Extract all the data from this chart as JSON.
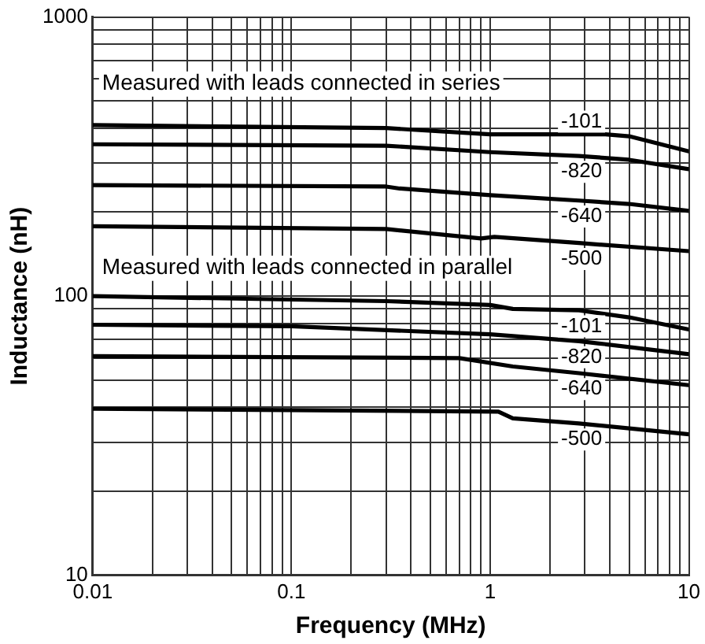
{
  "chart_data": {
    "type": "line",
    "xlabel": "Frequency (MHz)",
    "ylabel": "Inductance (nH)",
    "log": "xy",
    "grid": true,
    "legend": false,
    "marker": "none",
    "line_style": "solid",
    "annotations": [
      "Measured with leads connected in series",
      "Measured with leads connected in parallel"
    ],
    "xlim": [
      0.01,
      10
    ],
    "ylim": [
      10,
      1000
    ],
    "xticks": [
      0.01,
      {
        "value": 0.02,
        "label": null
      },
      {
        "value": 0.03,
        "label": null
      },
      {
        "value": 0.04,
        "label": null
      },
      {
        "value": 0.05,
        "label": null
      },
      {
        "value": 0.06,
        "label": null
      },
      {
        "value": 0.07,
        "label": null
      },
      {
        "value": 0.08,
        "label": null
      },
      {
        "value": 0.09,
        "label": null
      },
      0.1,
      {
        "value": 0.2,
        "label": null
      },
      {
        "value": 0.3,
        "label": null
      },
      {
        "value": 0.4,
        "label": null
      },
      {
        "value": 0.5,
        "label": null
      },
      {
        "value": 0.6,
        "label": null
      },
      {
        "value": 0.7,
        "label": null
      },
      {
        "value": 0.8,
        "label": null
      },
      {
        "value": 0.9,
        "label": null
      },
      1,
      {
        "value": 2,
        "label": null
      },
      {
        "value": 3,
        "label": null
      },
      {
        "value": 4,
        "label": null
      },
      {
        "value": 5,
        "label": null
      },
      {
        "value": 6,
        "label": null
      },
      {
        "value": 7,
        "label": null
      },
      {
        "value": 8,
        "label": null
      },
      {
        "value": 9,
        "label": null
      },
      10
    ],
    "yticks": [
      10,
      {
        "value": 20,
        "label": null
      },
      {
        "value": 30,
        "label": null
      },
      {
        "value": 40,
        "label": null
      },
      {
        "value": 50,
        "label": null
      },
      {
        "value": 60,
        "label": null
      },
      {
        "value": 70,
        "label": null
      },
      {
        "value": 80,
        "label": null
      },
      {
        "value": 90,
        "label": null
      },
      100,
      {
        "value": 200,
        "label": null
      },
      {
        "value": 300,
        "label": null
      },
      {
        "value": 400,
        "label": null
      },
      {
        "value": 500,
        "label": null
      },
      {
        "value": 600,
        "label": null
      },
      {
        "value": 700,
        "label": null
      },
      {
        "value": 800,
        "label": null
      },
      {
        "value": 900,
        "label": null
      },
      1000
    ],
    "series": [
      {
        "name": "-101",
        "color": "#000000",
        "x": [
          0.01,
          0.3,
          1,
          3.8,
          5,
          10
        ],
        "values": [
          410,
          400,
          380,
          380,
          374,
          330
        ]
      },
      {
        "name": "-820",
        "color": "#000000",
        "x": [
          0.01,
          0.3,
          1,
          2.8,
          5,
          10
        ],
        "values": [
          350,
          346,
          328,
          318,
          308,
          285
        ]
      },
      {
        "name": "-640",
        "color": "#000000",
        "x": [
          0.01,
          0.3,
          0.35,
          1,
          2.8,
          5,
          10
        ],
        "values": [
          250,
          247,
          243,
          230,
          220,
          214,
          202
        ]
      },
      {
        "name": "-500",
        "color": "#000000",
        "x": [
          0.01,
          0.3,
          0.9,
          1.05,
          2.8,
          10
        ],
        "values": [
          178,
          174,
          161,
          163,
          155,
          145
        ]
      },
      {
        "name": "-101",
        "color": "#000000",
        "x": [
          0.01,
          0.3,
          1,
          1.3,
          2.8,
          5,
          10
        ],
        "values": [
          100,
          96,
          93,
          90,
          89,
          84,
          76
        ]
      },
      {
        "name": "-820",
        "color": "#000000",
        "x": [
          0.01,
          0.1,
          1,
          2.8,
          10
        ],
        "values": [
          79,
          78,
          73,
          69,
          62
        ]
      },
      {
        "name": "-640",
        "color": "#000000",
        "x": [
          0.01,
          0.7,
          1.3,
          2.8,
          10
        ],
        "values": [
          61,
          60,
          56,
          53,
          48
        ]
      },
      {
        "name": "-500",
        "color": "#000000",
        "x": [
          0.01,
          1.1,
          1.3,
          2.8,
          10
        ],
        "values": [
          39.5,
          38.6,
          36.5,
          35,
          32
        ]
      }
    ]
  }
}
